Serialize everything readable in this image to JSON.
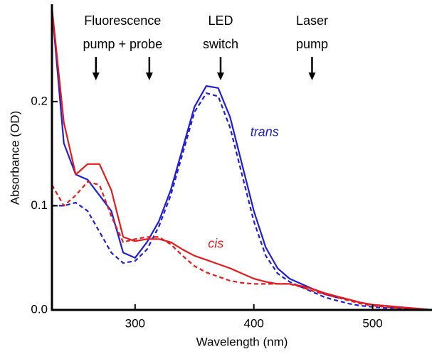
{
  "chart_data": {
    "type": "line",
    "xlabel": "Wavelength (nm)",
    "ylabel": "Absorbance (OD)",
    "x": [
      230,
      240,
      250,
      260,
      270,
      280,
      290,
      300,
      310,
      320,
      330,
      340,
      350,
      360,
      370,
      380,
      390,
      400,
      410,
      420,
      430,
      440,
      450,
      460,
      470,
      480,
      490,
      500,
      510,
      520,
      530,
      540,
      550
    ],
    "series": [
      {
        "color": "#1f1fd6",
        "dashed": false,
        "values": [
          0.29,
          0.16,
          0.13,
          0.125,
          0.11,
          0.095,
          0.055,
          0.05,
          0.065,
          0.085,
          0.115,
          0.155,
          0.195,
          0.215,
          0.213,
          0.185,
          0.14,
          0.095,
          0.06,
          0.04,
          0.03,
          0.025,
          0.02,
          0.015,
          0.012,
          0.01,
          0.007,
          0.005,
          0.004,
          0.003,
          0.002,
          0.001,
          0
        ]
      },
      {
        "color": "#1f1fd6",
        "dashed": true,
        "values": [
          0.1,
          0.1,
          0.103,
          0.095,
          0.075,
          0.055,
          0.045,
          0.047,
          0.058,
          0.08,
          0.11,
          0.15,
          0.19,
          0.208,
          0.205,
          0.175,
          0.13,
          0.085,
          0.052,
          0.035,
          0.027,
          0.022,
          0.017,
          0.012,
          0.009,
          0.006,
          0.004,
          0.003,
          0.002,
          0.002,
          0.001,
          0.001,
          0
        ]
      },
      {
        "color": "#e51b1b",
        "dashed": false,
        "values": [
          0.29,
          0.18,
          0.13,
          0.14,
          0.14,
          0.115,
          0.07,
          0.066,
          0.068,
          0.068,
          0.065,
          0.058,
          0.052,
          0.048,
          0.044,
          0.04,
          0.035,
          0.03,
          0.027,
          0.025,
          0.025,
          0.023,
          0.02,
          0.016,
          0.013,
          0.01,
          0.007,
          0.005,
          0.004,
          0.003,
          0.002,
          0.001,
          0
        ]
      },
      {
        "color": "#e51b1b",
        "dashed": true,
        "values": [
          0.12,
          0.1,
          0.11,
          0.123,
          0.12,
          0.09,
          0.065,
          0.068,
          0.07,
          0.07,
          0.063,
          0.052,
          0.042,
          0.036,
          0.032,
          0.028,
          0.026,
          0.025,
          0.025,
          0.025,
          0.025,
          0.022,
          0.018,
          0.015,
          0.012,
          0.009,
          0.006,
          0.004,
          0.003,
          0.002,
          0.002,
          0.001,
          0
        ]
      }
    ],
    "xlim": [
      230,
      550
    ],
    "xticks": [
      300,
      400,
      500
    ],
    "ylim": [
      0,
      0.292
    ],
    "yticks": [
      {
        "value": 0,
        "label": "0.0"
      },
      0.1,
      0.2
    ],
    "annotations": [
      {
        "text": "trans",
        "x": 409,
        "y": 0.17,
        "color": "#1f1fd6"
      },
      {
        "text": "cis",
        "x": 368,
        "y": 0.063,
        "color": "#e51b1b"
      }
    ],
    "arrows": [
      {
        "x": 267,
        "lines": [
          "Fluorescence",
          "pump + probe"
        ]
      },
      {
        "x": 312,
        "lines": []
      },
      {
        "x": 372,
        "lines": [
          "LED",
          "switch"
        ]
      },
      {
        "x": 449,
        "lines": [
          "Laser",
          "pump"
        ]
      }
    ]
  }
}
